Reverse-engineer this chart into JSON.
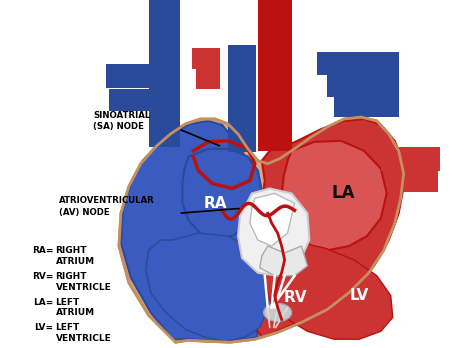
{
  "background_color": "#ffffff",
  "labels": {
    "SA_node": "SINOATRIAL\n(SA) NODE",
    "AV_node": "ATRIOVENTRICULAR\n(AV) NODE",
    "RA": "RA",
    "RV": "RV",
    "LA": "LA",
    "LV": "LV",
    "RA_abbr": "RA=",
    "RA_def": "RIGHT\nATRIUM",
    "RV_abbr": "RV=",
    "RV_def": "RIGHT\nVENTRICLE",
    "LA_abbr": "LA=",
    "LA_def": "LEFT\nATRIUM",
    "LV_abbr": "LV=",
    "LV_def": "LEFT\nVENTRICLE"
  },
  "colors": {
    "blue_dark": "#2a4a9a",
    "blue_mid": "#3a5bbf",
    "blue_light": "#5577dd",
    "red_dark": "#bb1111",
    "red_mid": "#cc3333",
    "red_light": "#dd5555",
    "skin": "#dba882",
    "skin_dark": "#c49060",
    "skin_light": "#e8c0a0",
    "white_bright": "#ffffff",
    "white_tissue": "#e8e8e8",
    "pink_chamber": "#d95555",
    "blue_chamber": "#3a5bbf",
    "text_black": "#000000"
  },
  "figsize": [
    4.73,
    3.48
  ],
  "dpi": 100
}
